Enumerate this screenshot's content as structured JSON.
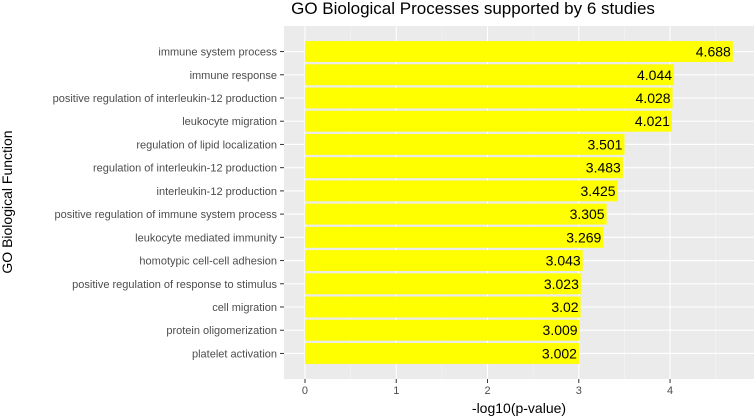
{
  "chart_data": {
    "type": "bar",
    "orientation": "horizontal",
    "title": "GO Biological Processes supported by 6 studies",
    "xlabel": "-log10(p-value)",
    "ylabel": "GO Biological Function",
    "categories": [
      "immune system process",
      "immune response",
      "positive regulation of interleukin-12 production",
      "leukocyte migration",
      "regulation of lipid localization",
      "regulation of interleukin-12 production",
      "interleukin-12 production",
      "positive regulation of immune system process",
      "leukocyte mediated immunity",
      "homotypic cell-cell adhesion",
      "positive regulation of response to stimulus",
      "cell migration",
      "protein oligomerization",
      "platelet activation"
    ],
    "values": [
      4.688,
      4.044,
      4.028,
      4.021,
      3.501,
      3.483,
      3.425,
      3.305,
      3.269,
      3.043,
      3.023,
      3.02,
      3.009,
      3.002
    ],
    "value_labels": [
      "4.688",
      "4.044",
      "4.028",
      "4.021",
      "3.501",
      "3.483",
      "3.425",
      "3.305",
      "3.269",
      "3.043",
      "3.023",
      "3.02",
      "3.009",
      "3.002"
    ],
    "xticks": [
      0,
      1,
      2,
      3,
      4
    ],
    "xlim": [
      -0.23,
      4.92
    ],
    "grid": true,
    "legend": "none",
    "colors": {
      "bar": "#ffff00",
      "panel_background": "#ebebeb",
      "grid_major": "#ffffff",
      "grid_minor": "#f5f5f5"
    }
  }
}
